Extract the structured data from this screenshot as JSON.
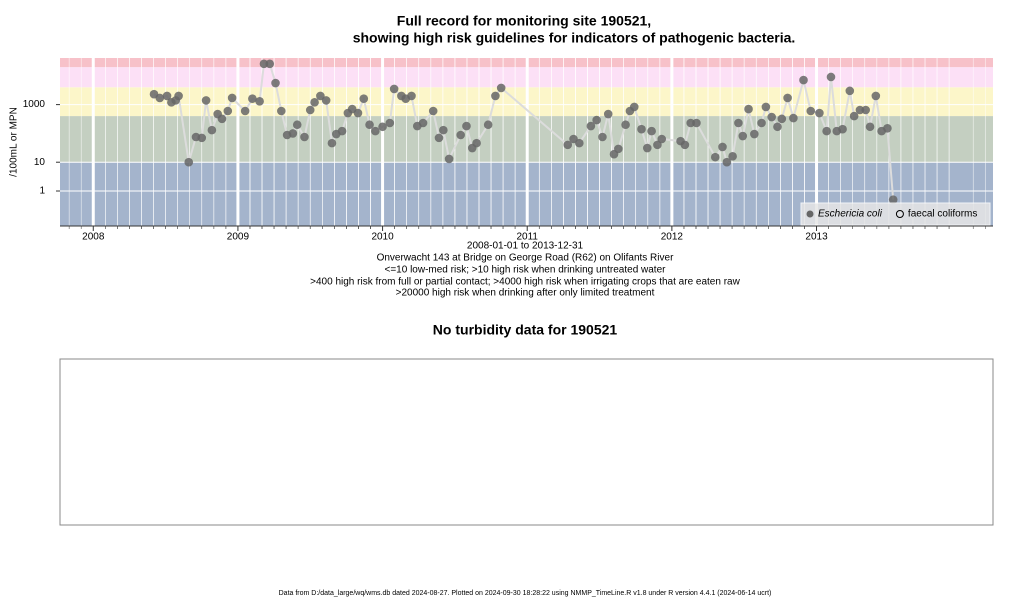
{
  "chart_data": {
    "type": "scatter",
    "title_lines": [
      "Full record for monitoring site 190521,",
      "showing high risk guidelines for indicators of pathogenic bacteria."
    ],
    "y_label": "/100mL or MPN",
    "subtitle_lines": [
      "2008-01-01 to 2013-12-31",
      "Onverwacht 143 at Bridge on George Road (R62) on Olifants River",
      "<=10 low-med risk; >10 high risk when drinking untreated water",
      ">400 high risk from full or partial contact; >4000 high risk when irrigating crops that are eaten raw",
      ">20000 high risk when drinking after only limited treatment"
    ],
    "log_y": true,
    "xlim": [
      2007.77,
      2014.22
    ],
    "xticks": [
      2008,
      2009,
      2010,
      2011,
      2012,
      2013
    ],
    "ylim": [
      0.061,
      41500
    ],
    "yticks": [
      1,
      10,
      1000
    ],
    "grid": true,
    "legend": "bottom-right",
    "bands": [
      {
        "to": 10,
        "color": "#a4b4cc"
      },
      {
        "to": 400,
        "color": "#c4cfc1"
      },
      {
        "to": 4000,
        "color": "#fcf6c9"
      },
      {
        "to": 20000,
        "color": "#fce0f6"
      },
      {
        "to": 41500,
        "color": "#f7c1c9"
      }
    ],
    "line_color": "#dcdcdc",
    "series": [
      {
        "name": "Eschericia coli",
        "color": "#666666",
        "filled": true,
        "x": [
          2008.42,
          2008.46,
          2008.51,
          2008.54,
          2008.57,
          2008.59,
          2008.66,
          2008.71,
          2008.75,
          2008.78,
          2008.82,
          2008.86,
          2008.89,
          2008.93,
          2008.96,
          2009.05,
          2009.1,
          2009.15,
          2009.18,
          2009.22,
          2009.26,
          2009.3,
          2009.34,
          2009.38,
          2009.41,
          2009.46,
          2009.5,
          2009.53,
          2009.57,
          2009.61,
          2009.65,
          2009.68,
          2009.72,
          2009.76,
          2009.79,
          2009.83,
          2009.87,
          2009.91,
          2009.95,
          2010.0,
          2010.05,
          2010.08,
          2010.13,
          2010.16,
          2010.2,
          2010.24,
          2010.28,
          2010.35,
          2010.39,
          2010.42,
          2010.46,
          2010.54,
          2010.58,
          2010.62,
          2010.65,
          2010.73,
          2010.78,
          2010.82,
          2011.28,
          2011.32,
          2011.36,
          2011.44,
          2011.48,
          2011.52,
          2011.56,
          2011.6,
          2011.63,
          2011.68,
          2011.71,
          2011.74,
          2011.79,
          2011.83,
          2011.86,
          2011.9,
          2011.93,
          2012.06,
          2012.09,
          2012.13,
          2012.17,
          2012.3,
          2012.35,
          2012.38,
          2012.42,
          2012.46,
          2012.49,
          2012.53,
          2012.57,
          2012.62,
          2012.65,
          2012.69,
          2012.73,
          2012.76,
          2012.8,
          2012.84,
          2012.91,
          2012.96,
          2013.02,
          2013.07,
          2013.1,
          2013.14,
          2013.18,
          2013.23,
          2013.26,
          2013.3,
          2013.34,
          2013.37,
          2013.41,
          2013.45,
          2013.49,
          2013.53
        ],
        "values": [
          2300,
          1700,
          2000,
          1200,
          1400,
          2000,
          10,
          75,
          70,
          1400,
          130,
          470,
          320,
          600,
          1700,
          600,
          1600,
          1300,
          26000,
          26000,
          5600,
          600,
          88,
          100,
          200,
          75,
          650,
          1200,
          2000,
          1400,
          46,
          95,
          120,
          510,
          700,
          510,
          1600,
          200,
          120,
          170,
          230,
          3500,
          2000,
          1600,
          2000,
          180,
          230,
          600,
          70,
          130,
          13,
          88,
          180,
          31,
          46,
          200,
          2000,
          3800,
          40,
          64,
          46,
          180,
          290,
          75,
          470,
          19,
          29,
          200,
          600,
          830,
          140,
          31,
          120,
          40,
          64,
          54,
          40,
          230,
          230,
          15,
          34,
          10,
          16,
          230,
          81,
          700,
          95,
          230,
          830,
          370,
          170,
          320,
          1700,
          340,
          7100,
          600,
          510,
          120,
          9100,
          120,
          140,
          3000,
          400,
          650,
          650,
          170,
          2000,
          120,
          150,
          0.5
        ]
      },
      {
        "name": "faecal coliforms",
        "color": "#000000",
        "filled": false,
        "x": [],
        "values": []
      }
    ],
    "panel2_title": "No turbidity data for 190521",
    "footer": "Data from D:/data_large/wq/wms.db dated 2024-08-27. Plotted on 2024-09-30 18:28:22 using NMMP_TimeLine.R v1.8 under R version 4.4.1 (2024-06-14 ucrt)"
  }
}
